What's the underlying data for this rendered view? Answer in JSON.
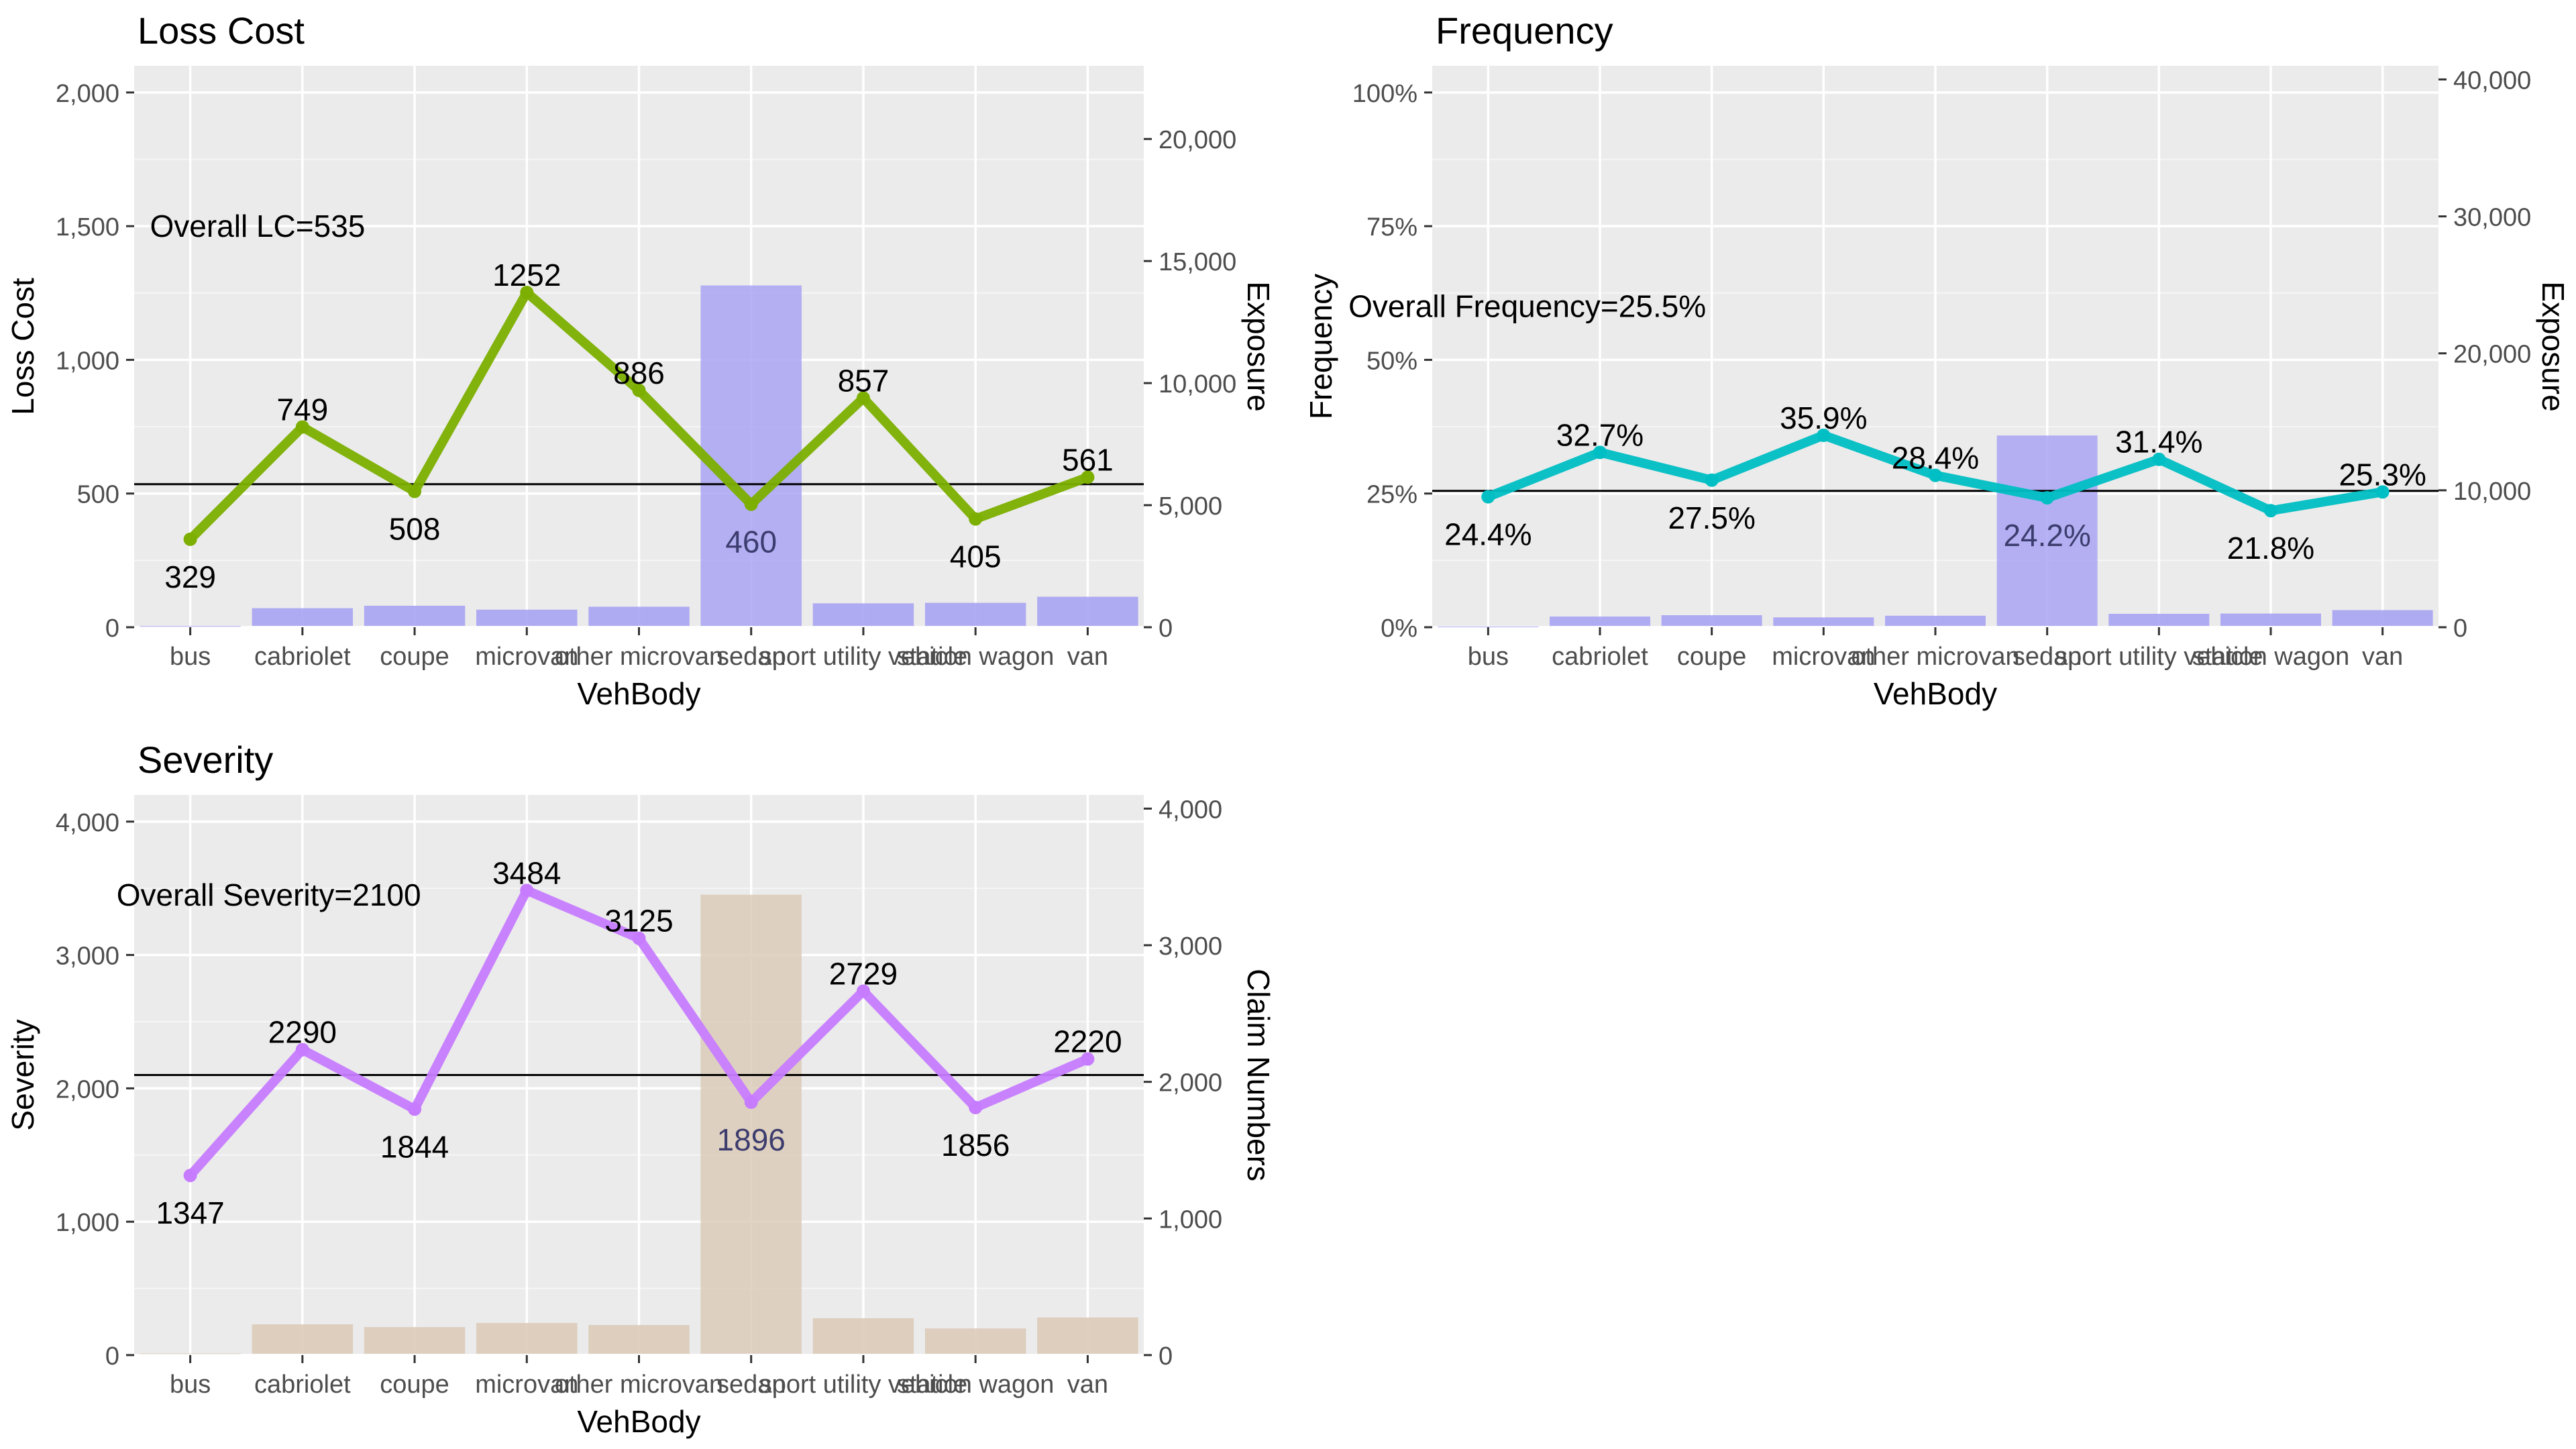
{
  "chart_data": [
    {
      "type": "bar+line",
      "title": "Loss Cost",
      "xlabel": "VehBody",
      "ylabel": "Loss Cost",
      "y2label": "Exposure",
      "categories": [
        "bus",
        "cabriolet",
        "coupe",
        "microvan",
        "other microvan",
        "sedan",
        "sport utility vehicle",
        "station wagon",
        "van"
      ],
      "line_values": [
        329,
        749,
        508,
        1252,
        886,
        460,
        857,
        405,
        561
      ],
      "line_labels": [
        "329",
        "749",
        "508",
        "1252",
        "886",
        "460",
        "857",
        "405",
        "561"
      ],
      "bar_values": [
        48,
        780,
        880,
        720,
        840,
        14000,
        980,
        1000,
        1250
      ],
      "ylim": [
        0,
        2100
      ],
      "y_ticks": [
        0,
        500,
        1000,
        1500,
        2000
      ],
      "y_tick_labels": [
        "0",
        "500",
        "1,000",
        "1,500",
        "2,000"
      ],
      "y2lim": [
        0,
        23000
      ],
      "y2_ticks": [
        0,
        5000,
        10000,
        15000,
        20000
      ],
      "y2_tick_labels": [
        "0",
        "5,000",
        "10,000",
        "15,000",
        "20,000"
      ],
      "hline": 535,
      "annotation": "Overall LC=535",
      "annotation_x": 2,
      "annotation_y": 1500,
      "line_color": "#7caf00",
      "bar_color": "#a9a4f3",
      "highlight_color": "#a9a4f3",
      "highlight_index": 5
    },
    {
      "type": "bar+line",
      "title": "Frequency",
      "xlabel": "VehBody",
      "ylabel": "Frequency",
      "y2label": "Exposure",
      "categories": [
        "bus",
        "cabriolet",
        "coupe",
        "microvan",
        "other microvan",
        "sedan",
        "sport utility vehicle",
        "station wagon",
        "van"
      ],
      "line_values": [
        0.244,
        0.327,
        0.275,
        0.359,
        0.284,
        0.242,
        0.314,
        0.218,
        0.253
      ],
      "line_labels": [
        "24.4%",
        "32.7%",
        "27.5%",
        "35.9%",
        "28.4%",
        "24.2%",
        "31.4%",
        "21.8%",
        "25.3%"
      ],
      "bar_values": [
        48,
        780,
        880,
        720,
        840,
        14000,
        980,
        1000,
        1250
      ],
      "ylim": [
        0,
        1.05
      ],
      "y_ticks": [
        0,
        0.25,
        0.5,
        0.75,
        1.0
      ],
      "y_tick_labels": [
        "0%",
        "25%",
        "50%",
        "75%",
        "100%"
      ],
      "y2lim": [
        0,
        41000
      ],
      "y2_ticks": [
        0,
        10000,
        20000,
        30000,
        40000
      ],
      "y2_tick_labels": [
        "0",
        "10,000",
        "20,000",
        "30,000",
        "40,000"
      ],
      "hline": 0.255,
      "annotation": "Overall Frequency=25.5%",
      "annotation_x": 1.75,
      "annotation_y": 0.6,
      "line_color": "#00bfc4",
      "bar_color": "#a9a4f3",
      "highlight_color": "#a9a4f3",
      "highlight_index": 5
    },
    {
      "type": "bar+line",
      "title": "Severity",
      "xlabel": "VehBody",
      "ylabel": "Severity",
      "y2label": "Claim Numbers",
      "categories": [
        "bus",
        "cabriolet",
        "coupe",
        "microvan",
        "other microvan",
        "sedan",
        "sport utility vehicle",
        "station wagon",
        "van"
      ],
      "line_values": [
        1347,
        2290,
        1844,
        3484,
        3125,
        1896,
        2729,
        1856,
        2220
      ],
      "line_labels": [
        "1347",
        "2290",
        "1844",
        "3484",
        "3125",
        "1896",
        "2729",
        "1856",
        "2220"
      ],
      "bar_values": [
        12,
        225,
        205,
        235,
        220,
        3370,
        270,
        195,
        275
      ],
      "ylim": [
        0,
        4200
      ],
      "y_ticks": [
        0,
        1000,
        2000,
        3000,
        4000
      ],
      "y_tick_labels": [
        "0",
        "1,000",
        "2,000",
        "3,000",
        "4,000"
      ],
      "y2lim": [
        0,
        4100
      ],
      "y2_ticks": [
        0,
        1000,
        2000,
        3000,
        4000
      ],
      "y2_tick_labels": [
        "0",
        "1,000",
        "2,000",
        "3,000",
        "4,000"
      ],
      "hline": 2100,
      "annotation": "Overall Severity=2100",
      "annotation_x": 2.1,
      "annotation_y": 3450,
      "line_color": "#c77cff",
      "bar_color": "#dccbb9",
      "highlight_color": "#dccbb9",
      "highlight_index": 5
    }
  ]
}
